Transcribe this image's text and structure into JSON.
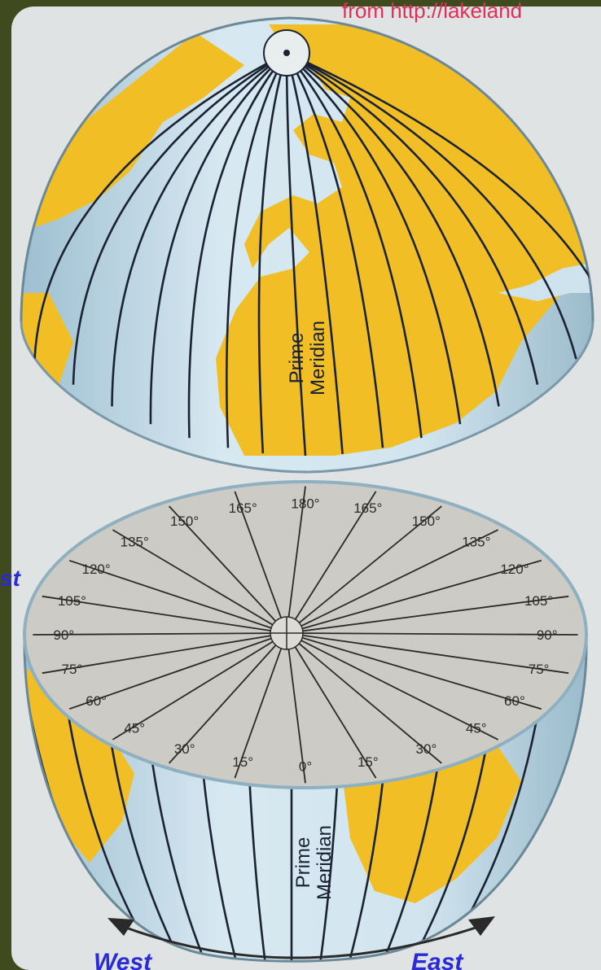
{
  "source_credit": "from http://lakeland",
  "side_labels": {
    "west": "West",
    "east": "East",
    "left_cut": "st"
  },
  "prime_meridian_label": {
    "line1": "Prime",
    "line2": "Meridian"
  },
  "meridian_labels": {
    "west": [
      "0°",
      "15°",
      "30°",
      "45°",
      "60°",
      "75°",
      "90°",
      "105°",
      "120°",
      "135°",
      "150°",
      "165°"
    ],
    "center_top": "180°",
    "east": [
      "15°",
      "30°",
      "45°",
      "60°",
      "75°",
      "90°",
      "105°",
      "120°",
      "135°",
      "150°",
      "165°"
    ]
  },
  "colors": {
    "background": "#3f4a1f",
    "land": "#f1bf25",
    "ocean": "#cfe3ee",
    "ocean_shadow": "#a9c8d8",
    "cut_face": "#cdcbc6",
    "credit_text": "#e0305a",
    "arrow_text": "#2a2ad6"
  }
}
